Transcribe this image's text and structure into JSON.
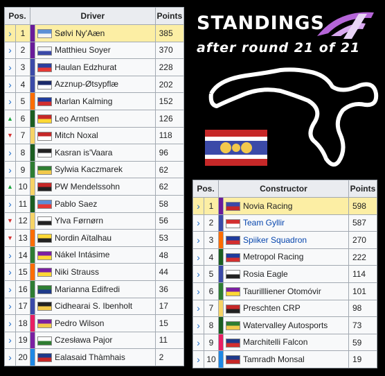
{
  "header": {
    "title": "STANDINGS",
    "subtitle": "after round 21 of 21"
  },
  "drivers_table": {
    "columns": [
      "Pos.",
      "Driver",
      "Points"
    ],
    "rows": [
      {
        "trend": "same",
        "pos": "1",
        "driver": "Sølvi Ny'Aæn",
        "points": "385",
        "highlight": true,
        "bar": "#6a1b9a",
        "flag": [
          "#5b8fd6",
          "#f4f4f4"
        ]
      },
      {
        "trend": "same",
        "pos": "2",
        "driver": "Matthieu Soyer",
        "points": "370",
        "highlight": false,
        "bar": "#6a1b9a",
        "flag": [
          "#f4f4f4",
          "#3b4aa8"
        ]
      },
      {
        "trend": "same",
        "pos": "3",
        "driver": "Haulan Edzhurat",
        "points": "228",
        "highlight": false,
        "bar": "#3b4aa8",
        "flag": [
          "#2c3f9e",
          "#e53935"
        ]
      },
      {
        "trend": "same",
        "pos": "4",
        "driver": "Azznup-Øtsypflæ",
        "points": "202",
        "highlight": false,
        "bar": "#3b4aa8",
        "flag": [
          "#1b2a6b",
          "#ffffff"
        ]
      },
      {
        "trend": "same",
        "pos": "5",
        "driver": "Marlan Kalming",
        "points": "152",
        "highlight": false,
        "bar": "#ff6d00",
        "flag": [
          "#1f3b9c",
          "#d32f2f"
        ]
      },
      {
        "trend": "up",
        "pos": "6",
        "driver": "Leo Arntsen",
        "points": "126",
        "highlight": false,
        "bar": "#1b5e20",
        "flag": [
          "#c62828",
          "#fdd835"
        ]
      },
      {
        "trend": "down",
        "pos": "7",
        "driver": "Mitch Noxal",
        "points": "118",
        "highlight": false,
        "bar": "#f6d365",
        "flag": [
          "#c62828",
          "#ffffff"
        ]
      },
      {
        "trend": "same",
        "pos": "8",
        "driver": "Kasran is'Vaara",
        "points": "96",
        "highlight": false,
        "bar": "#1b5e20",
        "flag": [
          "#222222",
          "#ffffff"
        ]
      },
      {
        "trend": "same",
        "pos": "9",
        "driver": "Sylwia Kaczmarek",
        "points": "62",
        "highlight": false,
        "bar": "#2e7d32",
        "flag": [
          "#2e7d32",
          "#f2c94c"
        ]
      },
      {
        "trend": "up",
        "pos": "10",
        "driver": "PW Mendelssohn",
        "points": "62",
        "highlight": false,
        "bar": "#f6d365",
        "flag": [
          "#c62828",
          "#222222"
        ]
      },
      {
        "trend": "same",
        "pos": "11",
        "driver": "Pablo Saez",
        "points": "58",
        "highlight": false,
        "bar": "#1b5e20",
        "flag": [
          "#5b8fd6",
          "#e53935"
        ]
      },
      {
        "trend": "down",
        "pos": "12",
        "driver": "Ylva Førnørn",
        "points": "56",
        "highlight": false,
        "bar": "#f6d365",
        "flag": [
          "#ffffff",
          "#222222"
        ]
      },
      {
        "trend": "down",
        "pos": "13",
        "driver": "Nordin Aïtalhau",
        "points": "53",
        "highlight": false,
        "bar": "#ff6d00",
        "flag": [
          "#fdd835",
          "#222222"
        ]
      },
      {
        "trend": "same",
        "pos": "14",
        "driver": "Nákel Intásime",
        "points": "48",
        "highlight": false,
        "bar": "#2e7d32",
        "flag": [
          "#7b1fa2",
          "#fdd835"
        ]
      },
      {
        "trend": "same",
        "pos": "15",
        "driver": "Niki Strauss",
        "points": "44",
        "highlight": false,
        "bar": "#ff6d00",
        "flag": [
          "#7b1fa2",
          "#fdd835"
        ]
      },
      {
        "trend": "same",
        "pos": "16",
        "driver": "Marianna Edifredi",
        "points": "36",
        "highlight": false,
        "bar": "#2e7d32",
        "flag": [
          "#2e7d32",
          "#1e3a8a"
        ]
      },
      {
        "trend": "same",
        "pos": "17",
        "driver": "Cidhearai S. Ibenholt",
        "points": "17",
        "highlight": false,
        "bar": "#3b4aa8",
        "flag": [
          "#222222",
          "#f2c94c"
        ]
      },
      {
        "trend": "same",
        "pos": "18",
        "driver": "Pedro Wilson",
        "points": "15",
        "highlight": false,
        "bar": "#e91e63",
        "flag": [
          "#7b1fa2",
          "#f2c94c"
        ]
      },
      {
        "trend": "same",
        "pos": "19",
        "driver": "Czesława Pajor",
        "points": "11",
        "highlight": false,
        "bar": "#7b1fa2",
        "flag": [
          "#ffffff",
          "#2e7d32"
        ]
      },
      {
        "trend": "same",
        "pos": "20",
        "driver": "Ealasaid Thàmhais",
        "points": "2",
        "highlight": false,
        "bar": "#1e88e5",
        "flag": [
          "#1e3a8a",
          "#c62828"
        ]
      }
    ]
  },
  "constructors_table": {
    "columns": [
      "Pos.",
      "Constructor",
      "Points"
    ],
    "rows": [
      {
        "trend": "same",
        "pos": "1",
        "constructor": "Novia Racing",
        "points": "598",
        "highlight": true,
        "link": false,
        "bar": "#6a1b9a",
        "flag": [
          "#3b4aa8",
          "#c62828"
        ]
      },
      {
        "trend": "same",
        "pos": "2",
        "constructor": "Team Gyllir",
        "points": "587",
        "highlight": false,
        "link": true,
        "bar": "#3b4aa8",
        "flag": [
          "#d32f2f",
          "#ffffff"
        ]
      },
      {
        "trend": "same",
        "pos": "3",
        "constructor": "Spiiker Squadron",
        "points": "270",
        "highlight": false,
        "link": true,
        "bar": "#ff6d00",
        "flag": [
          "#1f3b9c",
          "#d32f2f"
        ]
      },
      {
        "trend": "same",
        "pos": "4",
        "constructor": "Metropol Racing",
        "points": "222",
        "highlight": false,
        "link": false,
        "bar": "#1b5e20",
        "flag": [
          "#1f3b9c",
          "#d32f2f"
        ]
      },
      {
        "trend": "same",
        "pos": "5",
        "constructor": "Rosia Eagle",
        "points": "114",
        "highlight": false,
        "link": false,
        "bar": "#3b4aa8",
        "flag": [
          "#ffffff",
          "#222222"
        ]
      },
      {
        "trend": "same",
        "pos": "6",
        "constructor": "Taurillliener Otomóvir",
        "points": "101",
        "highlight": false,
        "link": false,
        "bar": "#2e7d32",
        "flag": [
          "#7b1fa2",
          "#fdd835"
        ]
      },
      {
        "trend": "same",
        "pos": "7",
        "constructor": "Preschten CRP",
        "points": "98",
        "highlight": false,
        "link": false,
        "bar": "#f6d365",
        "flag": [
          "#c62828",
          "#222222"
        ]
      },
      {
        "trend": "same",
        "pos": "8",
        "constructor": "Watervalley Autosports",
        "points": "73",
        "highlight": false,
        "link": false,
        "bar": "#1b5e20",
        "flag": [
          "#2e7d32",
          "#f2c94c"
        ]
      },
      {
        "trend": "same",
        "pos": "9",
        "constructor": "Marchitelli Falcon",
        "points": "59",
        "highlight": false,
        "link": false,
        "bar": "#e91e63",
        "flag": [
          "#1e3a8a",
          "#d32f2f"
        ]
      },
      {
        "trend": "same",
        "pos": "10",
        "constructor": "Tamradh Monsal",
        "points": "19",
        "highlight": false,
        "link": false,
        "bar": "#1e88e5",
        "flag": [
          "#1e3a8a",
          "#c62828"
        ]
      }
    ]
  },
  "trend_icons": {
    "same": "chevron-right-icon",
    "up": "arrow-up-icon",
    "down": "arrow-down-icon"
  },
  "colors": {
    "background": "#000000",
    "highlight": "#fceea4",
    "header": "#eaecf0",
    "logo": "#b565d8"
  }
}
